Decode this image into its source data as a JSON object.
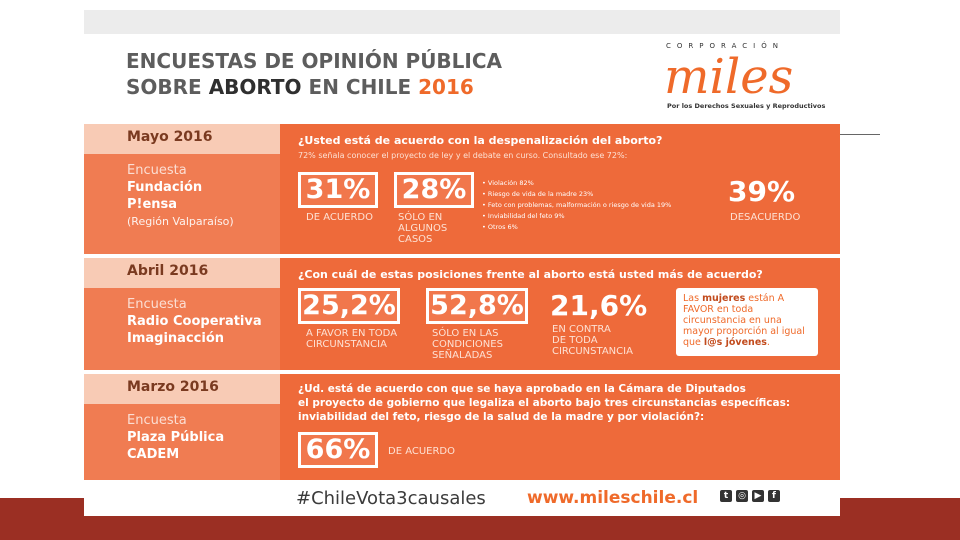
{
  "title": {
    "line1": "ENCUESTAS DE OPINIÓN PÚBLICA",
    "line2_pre": "SOBRE ",
    "line2_em": "ABORTO",
    "line2_mid": " EN CHILE ",
    "line2_year": "2016"
  },
  "logo": {
    "corp": "CORPORACIÓN",
    "word": "miles",
    "sub": "Por los Derechos Sexuales y Reproductivos"
  },
  "sections": [
    {
      "date": "Mayo 2016",
      "enc_label": "Encuesta",
      "name1": "Fundación",
      "name2": "P!ensa",
      "region": "(Región Valparaíso)",
      "question": "¿Usted está de acuerdo con la despenalización del aborto?",
      "note": "72% señala conocer el proyecto de ley y el debate en curso. Consultado ese 72%:",
      "p1": "31%",
      "c1": "DE ACUERDO",
      "p2": "28%",
      "c2a": "SÓLO EN",
      "c2b": "ALGUNOS",
      "c2c": "CASOS",
      "bullets": [
        "Violación 82%",
        "Riesgo de vida de la madre 23%",
        "Feto con problemas, malformación o riesgo de vida 19%",
        "Inviabilidad del feto 9%",
        "Otros 6%"
      ],
      "p3": "39%",
      "c3": "DESACUERDO"
    },
    {
      "date": "Abril 2016",
      "enc_label": "Encuesta",
      "name1": "Radio Cooperativa",
      "name2": "Imaginacción",
      "question": "¿Con cuál de estas posiciones frente al aborto está usted más de acuerdo?",
      "p1": "25,2%",
      "c1a": "A FAVOR EN TODA",
      "c1b": "CIRCUNSTANCIA",
      "p2": "52,8%",
      "c2a": "SÓLO EN LAS",
      "c2b": "CONDICIONES",
      "c2c": "SEÑALADAS",
      "p3": "21,6%",
      "c3a": "EN CONTRA",
      "c3b": "DE TODA",
      "c3c": "CIRCUNSTANCIA",
      "callout_pre": "Las ",
      "callout_b1": "mujeres",
      "callout_mid": " están A FAVOR en toda circunstancia en una mayor proporción al igual que ",
      "callout_b2": "l@s jóvenes",
      "callout_end": "."
    },
    {
      "date": "Marzo 2016",
      "enc_label": "Encuesta",
      "name1": "Plaza Pública",
      "name2": "CADEM",
      "q1": "¿Ud. está de acuerdo con que se haya aprobado en la Cámara de Diputados",
      "q2": "el proyecto de gobierno que legaliza el aborto bajo tres circunstancias específicas:",
      "q3": "inviabilidad del feto, riesgo de la salud de la madre y por violación?:",
      "p1": "66%",
      "c1": "DE ACUERDO"
    }
  ],
  "footer": {
    "hashtag": "#ChileVota3causales",
    "url": "www.mileschile.cl",
    "icons": [
      "twitter-icon",
      "instagram-icon",
      "youtube-icon",
      "facebook-icon"
    ]
  }
}
